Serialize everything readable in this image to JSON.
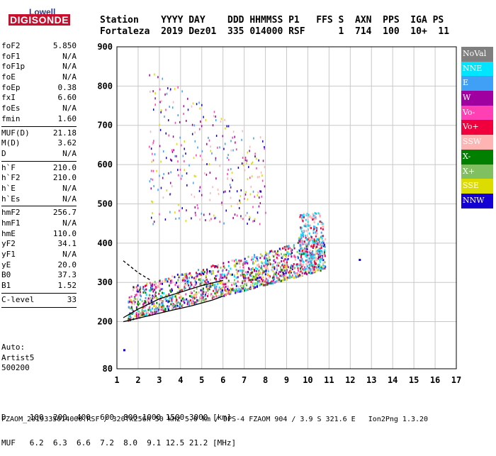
{
  "logo": {
    "top": "Lowell",
    "bottom": "DIGISONDE"
  },
  "header": {
    "line1": "Station    YYYY DAY    DDD HHMMSS P1   FFS S  AXN  PPS  IGA PS",
    "line2": "Fortaleza  2019 Dez01  335 014000 RSF      1  714  100  10+  11"
  },
  "params": [
    {
      "name": "foF2",
      "value": "5.850"
    },
    {
      "name": "foF1",
      "value": "N/A"
    },
    {
      "name": "foF1p",
      "value": "N/A"
    },
    {
      "name": "foE",
      "value": "N/A"
    },
    {
      "name": "foEp",
      "value": "0.38"
    },
    {
      "name": "fxI",
      "value": "6.60"
    },
    {
      "name": "foEs",
      "value": "N/A"
    },
    {
      "name": "fmin",
      "value": "1.60"
    },
    {
      "sep": true
    },
    {
      "name": "MUF(D)",
      "value": "21.18"
    },
    {
      "name": "M(D)",
      "value": "3.62"
    },
    {
      "name": "D",
      "value": "N/A"
    },
    {
      "sep": true
    },
    {
      "name": "h`F",
      "value": "210.0"
    },
    {
      "name": "h`F2",
      "value": "210.0"
    },
    {
      "name": "h`E",
      "value": "N/A"
    },
    {
      "name": "h`Es",
      "value": "N/A"
    },
    {
      "sep": true
    },
    {
      "name": "hmF2",
      "value": "256.7"
    },
    {
      "name": "hmF1",
      "value": "N/A"
    },
    {
      "name": "hmE",
      "value": "110.0"
    },
    {
      "name": "yF2",
      "value": "34.1"
    },
    {
      "name": "yF1",
      "value": "N/A"
    },
    {
      "name": "yE",
      "value": "20.0"
    },
    {
      "name": "B0",
      "value": "37.3"
    },
    {
      "name": "B1",
      "value": "1.52"
    },
    {
      "sep": true
    },
    {
      "name": "C-level",
      "value": "33"
    },
    {
      "sep": true
    }
  ],
  "auto": [
    "Auto:",
    "Artist5",
    "500200"
  ],
  "legend": [
    {
      "label": "NoVal",
      "color": "#7f7f7f"
    },
    {
      "label": "NNE",
      "color": "#00e5ff"
    },
    {
      "label": "E",
      "color": "#3fa0f5"
    },
    {
      "label": "W",
      "color": "#a0009f"
    },
    {
      "label": "Vo-",
      "color": "#ff3fb4"
    },
    {
      "label": "Vo+",
      "color": "#f0003c"
    },
    {
      "label": "SSW",
      "color": "#ffb4b4"
    },
    {
      "label": "X-",
      "color": "#007f00"
    },
    {
      "label": "X+",
      "color": "#80c060"
    },
    {
      "label": "SSE",
      "color": "#dcdc00"
    },
    {
      "label": "NNW",
      "color": "#1400d2"
    }
  ],
  "footer": {
    "line1": "D     100  200  400  600  800 1000 1500 3000 [km]",
    "line2": "MUF   6.2  6.3  6.6  7.2  8.0  9.1 12.5 21.2 [MHz]",
    "line3": "FZAOM_2019335014000.RSF / 320fx256h 50 kHz 5.0 km / DPS-4 FZAOM 904 / 3.9 S 321.6 E   Ion2Png 1.3.20"
  },
  "chart_data": {
    "type": "scatter",
    "xlabel": "",
    "ylabel": "",
    "xlim": [
      1,
      17
    ],
    "ylim": [
      80,
      900
    ],
    "x_ticks": [
      1,
      2,
      3,
      4,
      5,
      6,
      7,
      8,
      9,
      10,
      11,
      12,
      13,
      14,
      15,
      16,
      17
    ],
    "y_ticks": [
      80,
      200,
      300,
      400,
      500,
      600,
      700,
      800,
      900
    ],
    "grid": true,
    "legend_placement": "right",
    "clusters": [
      {
        "name": "o-trace",
        "x": [
          1.5,
          10.8
        ],
        "y": [
          205,
          420
        ],
        "colors": [
          "#f0003c",
          "#ff3fb4",
          "#3fa0f5",
          "#a0009f",
          "#007f00",
          "#dcdc00",
          "#00e5ff",
          "#1400d2",
          "#ffb4b4",
          "#80c060"
        ]
      },
      {
        "name": "upper-echoes",
        "x": [
          2.5,
          8.0
        ],
        "y": [
          450,
          850
        ],
        "colors": [
          "#dcdc00",
          "#ffb4b4",
          "#3fa0f5",
          "#a0009f",
          "#1400d2",
          "#ff3fb4"
        ]
      },
      {
        "name": "x-trace",
        "x": [
          9.6,
          10.7
        ],
        "y": [
          330,
          480
        ],
        "colors": [
          "#00e5ff",
          "#3fa0f5",
          "#f0003c",
          "#ffb4b4"
        ]
      }
    ],
    "profile_curves": [
      {
        "name": "lower",
        "points": [
          [
            1.3,
            200
          ],
          [
            2.5,
            215
          ],
          [
            3.5,
            228
          ],
          [
            4.5,
            240
          ],
          [
            5.5,
            255
          ],
          [
            6.0,
            265
          ]
        ]
      },
      {
        "name": "upper",
        "points": [
          [
            1.3,
            210
          ],
          [
            2.0,
            232
          ],
          [
            3.0,
            258
          ],
          [
            4.0,
            275
          ],
          [
            5.0,
            292
          ],
          [
            6.0,
            305
          ]
        ]
      },
      {
        "name": "dashed",
        "points": [
          [
            1.3,
            355
          ],
          [
            2.0,
            325
          ],
          [
            2.6,
            305
          ]
        ]
      }
    ],
    "isolated_points": [
      [
        1.3,
        130
      ],
      [
        12.4,
        360
      ]
    ]
  }
}
